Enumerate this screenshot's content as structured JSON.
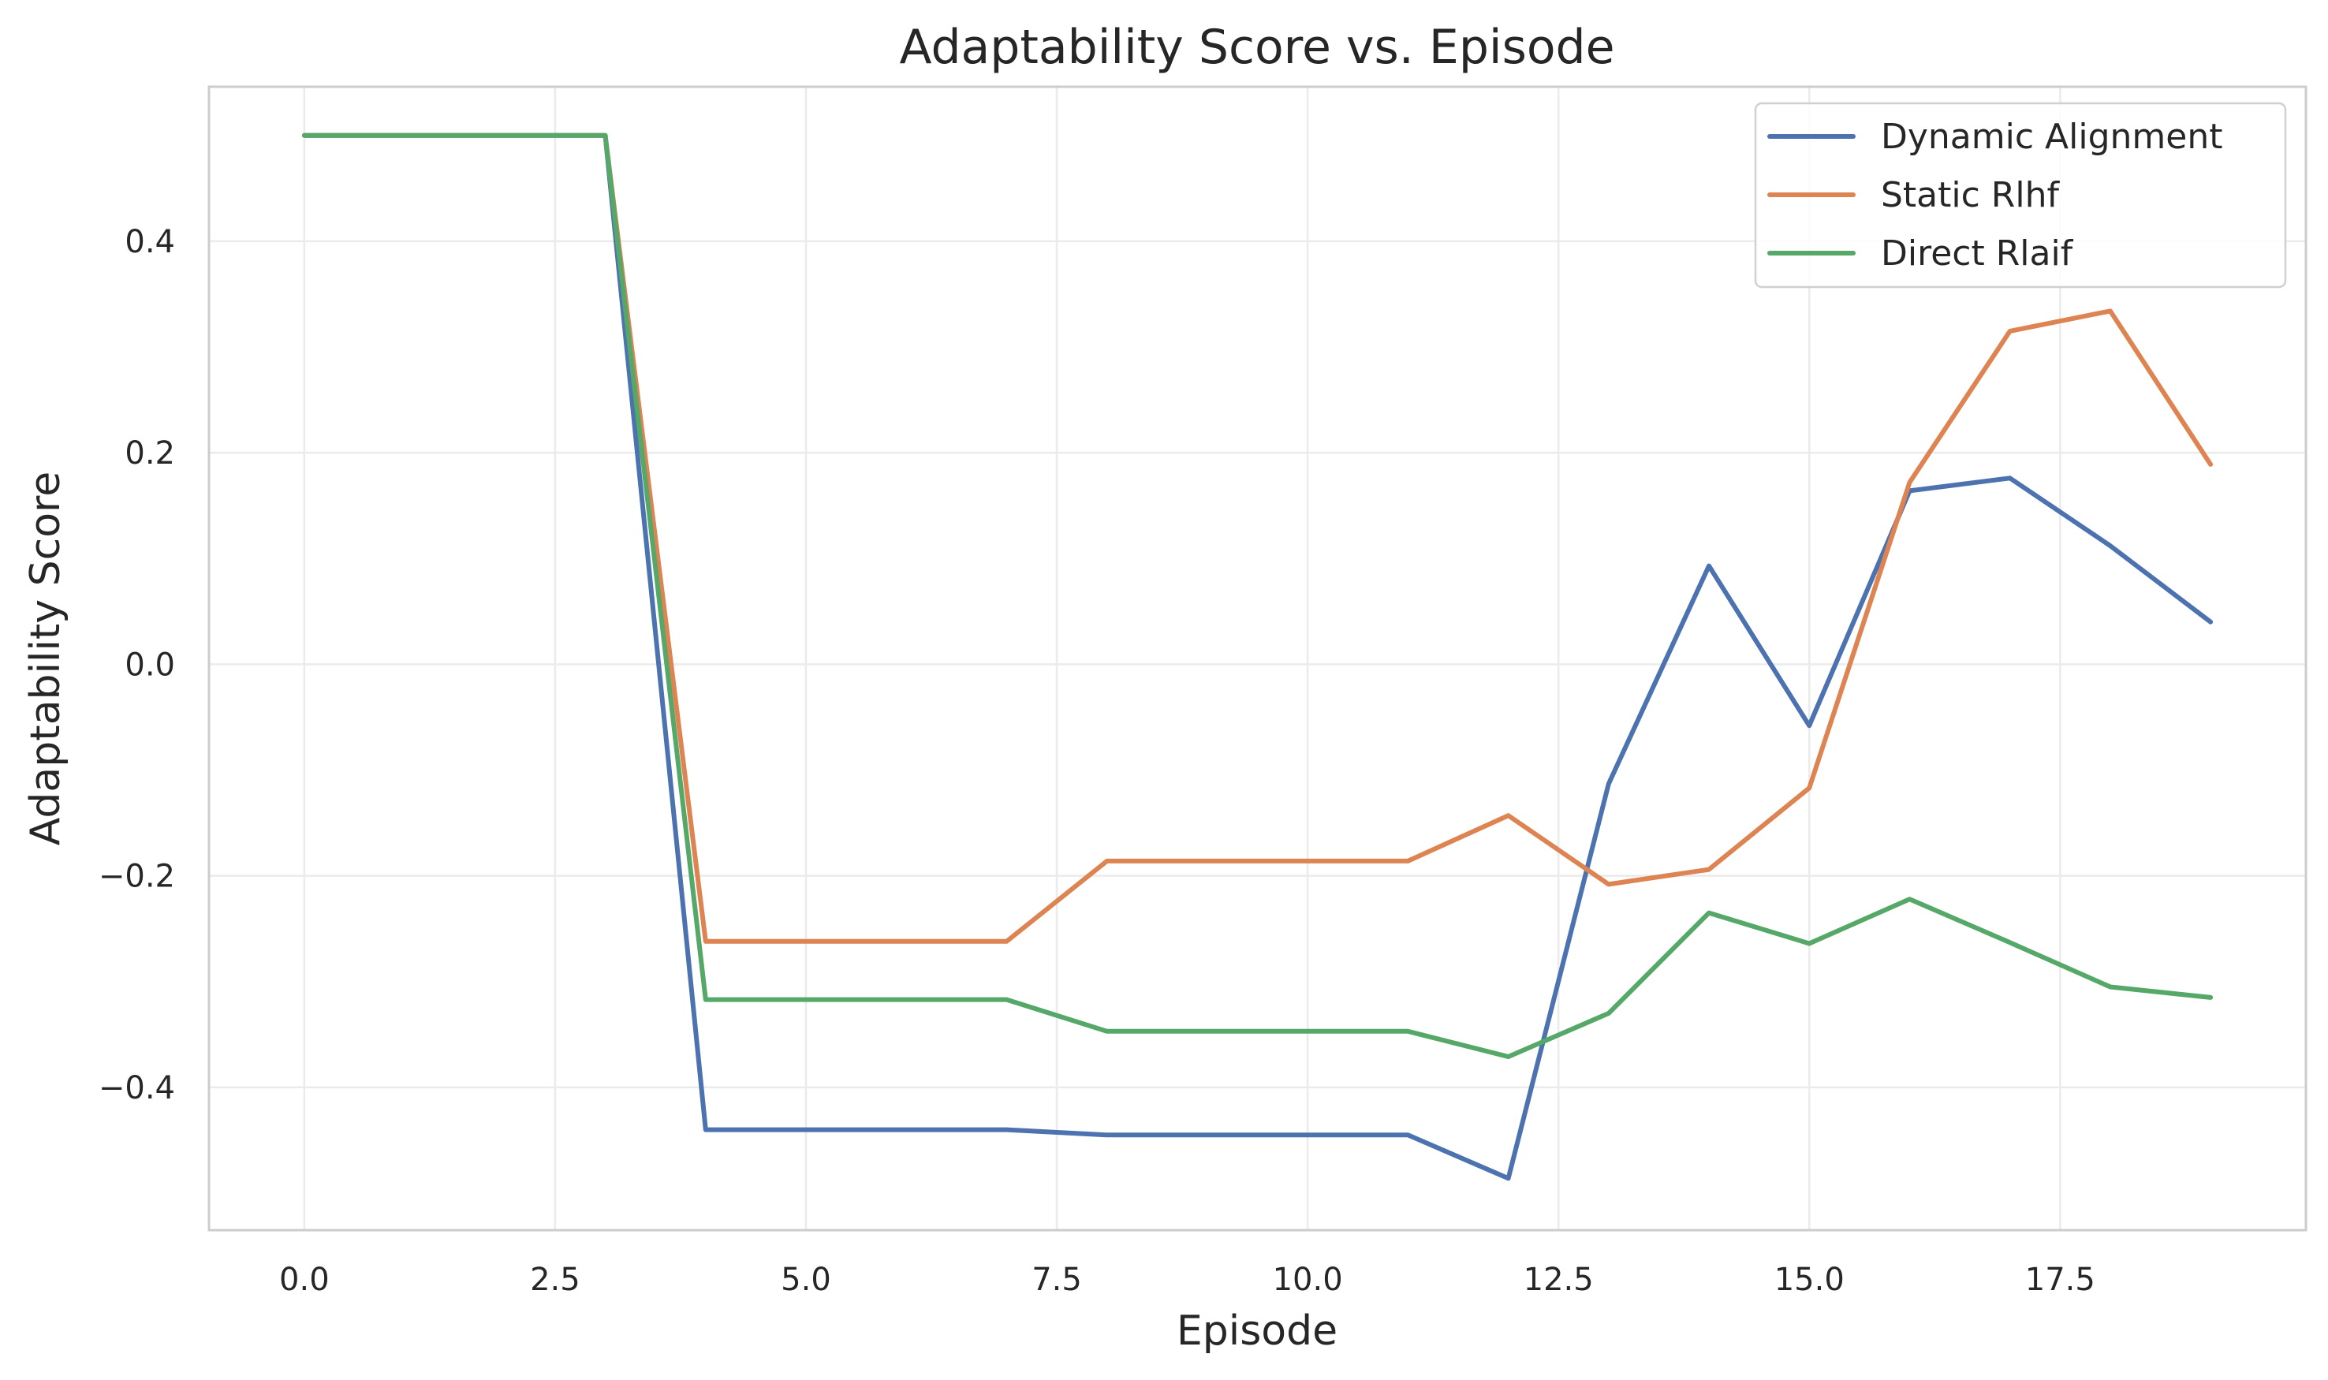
{
  "chart_data": {
    "type": "line",
    "title": "Adaptability Score vs. Episode",
    "xlabel": "Episode",
    "ylabel": "Adaptability Score",
    "xlim": [
      -0.95,
      19.95
    ],
    "ylim": [
      -0.535,
      0.546
    ],
    "xticks": [
      0.0,
      2.5,
      5.0,
      7.5,
      10.0,
      12.5,
      15.0,
      17.5
    ],
    "xtick_labels": [
      "0.0",
      "2.5",
      "5.0",
      "7.5",
      "10.0",
      "12.5",
      "15.0",
      "17.5"
    ],
    "yticks": [
      -0.4,
      -0.2,
      0.0,
      0.2,
      0.4
    ],
    "ytick_labels": [
      "−0.4",
      "−0.2",
      "0.0",
      "0.2",
      "0.4"
    ],
    "grid": true,
    "legend_position": "top-right",
    "x": [
      0,
      1,
      2,
      3,
      4,
      5,
      6,
      7,
      8,
      9,
      10,
      11,
      12,
      13,
      14,
      15,
      16,
      17,
      18,
      19
    ],
    "series": [
      {
        "name": "Dynamic Alignment",
        "color": "#4c72b0",
        "values": [
          0.5,
          0.5,
          0.5,
          0.5,
          -0.44,
          -0.44,
          -0.44,
          -0.44,
          -0.445,
          -0.445,
          -0.445,
          -0.445,
          -0.486,
          -0.113,
          0.093,
          -0.058,
          0.164,
          0.176,
          0.112,
          0.04
        ]
      },
      {
        "name": "Static Rlhf",
        "color": "#dd8452",
        "values": [
          0.5,
          0.5,
          0.5,
          0.5,
          -0.262,
          -0.262,
          -0.262,
          -0.262,
          -0.186,
          -0.186,
          -0.186,
          -0.186,
          -0.143,
          -0.208,
          -0.194,
          -0.117,
          0.172,
          0.315,
          0.334,
          0.189
        ]
      },
      {
        "name": "Direct Rlaif",
        "color": "#55a868",
        "values": [
          0.5,
          0.5,
          0.5,
          0.5,
          -0.317,
          -0.317,
          -0.317,
          -0.317,
          -0.347,
          -0.347,
          -0.347,
          -0.347,
          -0.371,
          -0.33,
          -0.235,
          -0.264,
          -0.222,
          -0.263,
          -0.305,
          -0.315
        ]
      }
    ]
  }
}
